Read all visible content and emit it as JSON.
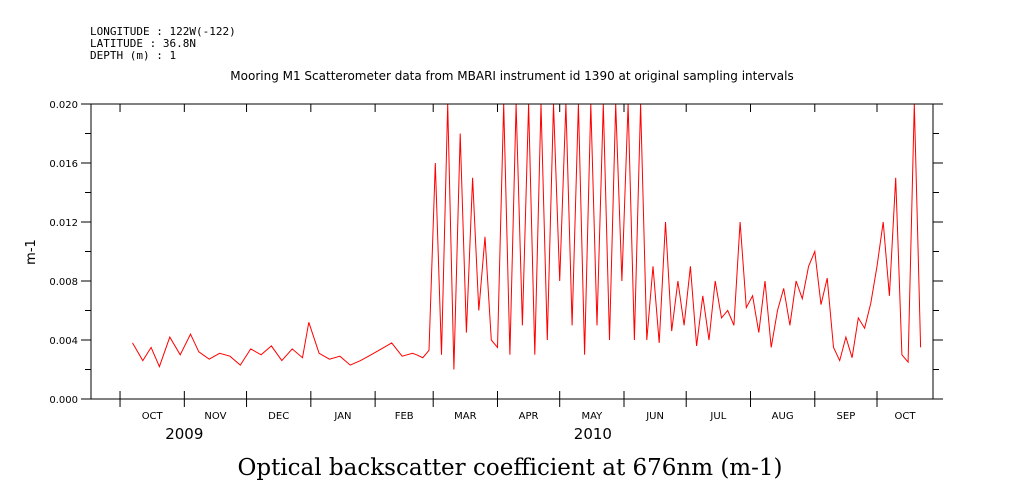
{
  "meta": {
    "longitude": "LONGITUDE : 122W(-122)",
    "latitude": "LATITUDE : 36.8N",
    "depth": "DEPTH (m) : 1"
  },
  "chart_data": {
    "type": "line",
    "title": "Mooring M1 Scatterometer data from MBARI instrument id 1390 at original sampling intervals",
    "xlabel": "Optical backscatter coefficient at 676nm (m-1)",
    "ylabel": "m-1",
    "ylim": [
      0,
      0.02
    ],
    "yticks": [
      "0.000",
      "0.004",
      "0.008",
      "0.012",
      "0.016",
      "0.020"
    ],
    "xlim": [
      "2009-09-17",
      "2010-10-28"
    ],
    "month_labels": [
      "OCT",
      "NOV",
      "DEC",
      "JAN",
      "FEB",
      "MAR",
      "APR",
      "MAY",
      "JUN",
      "JUL",
      "AUG",
      "SEP",
      "OCT"
    ],
    "years": [
      {
        "label": "2009",
        "date": "2009-11-01"
      },
      {
        "label": "2010",
        "date": "2010-05-17"
      }
    ],
    "line_color": "#ff0000",
    "grid": false,
    "series": [
      {
        "x": [
          "2009-10-07",
          "2009-10-12",
          "2009-10-16",
          "2009-10-20",
          "2009-10-25",
          "2009-10-30",
          "2009-11-04",
          "2009-11-08",
          "2009-11-13",
          "2009-11-18",
          "2009-11-23",
          "2009-11-28",
          "2009-12-03",
          "2009-12-08",
          "2009-12-13",
          "2009-12-18",
          "2009-12-23",
          "2009-12-28",
          "2009-12-31",
          "2010-01-05",
          "2010-01-10",
          "2010-01-15",
          "2010-01-20",
          "2010-01-25",
          "2010-01-30",
          "2010-02-04",
          "2010-02-09",
          "2010-02-14",
          "2010-02-19",
          "2010-02-21",
          "2010-02-24",
          "2010-02-27",
          "2010-03-02",
          "2010-03-05",
          "2010-03-08",
          "2010-03-11",
          "2010-03-14",
          "2010-03-17",
          "2010-03-20",
          "2010-03-23",
          "2010-03-26",
          "2010-03-29",
          "2010-04-01",
          "2010-04-04",
          "2010-04-07",
          "2010-04-10",
          "2010-04-13",
          "2010-04-16",
          "2010-04-19",
          "2010-04-22",
          "2010-04-25",
          "2010-04-28",
          "2010-05-01",
          "2010-05-04",
          "2010-05-07",
          "2010-05-10",
          "2010-05-13",
          "2010-05-16",
          "2010-05-19",
          "2010-05-22",
          "2010-05-25",
          "2010-05-28",
          "2010-05-31",
          "2010-06-03",
          "2010-06-06",
          "2010-06-09",
          "2010-06-12",
          "2010-06-15",
          "2010-06-18",
          "2010-06-21",
          "2010-06-24",
          "2010-06-27",
          "2010-06-30",
          "2010-07-03",
          "2010-07-06",
          "2010-07-09",
          "2010-07-12",
          "2010-07-15",
          "2010-07-18",
          "2010-07-21",
          "2010-07-24",
          "2010-07-27",
          "2010-07-30",
          "2010-08-02",
          "2010-08-05",
          "2010-08-08",
          "2010-08-11",
          "2010-08-14",
          "2010-08-17",
          "2010-08-20",
          "2010-08-23",
          "2010-08-26",
          "2010-08-29",
          "2010-09-01",
          "2010-09-04",
          "2010-09-07",
          "2010-09-10",
          "2010-09-13",
          "2010-09-16",
          "2010-09-19",
          "2010-09-22",
          "2010-09-25",
          "2010-09-28",
          "2010-10-01",
          "2010-10-04",
          "2010-10-07",
          "2010-10-10",
          "2010-10-13",
          "2010-10-16",
          "2010-10-19",
          "2010-10-22"
        ],
        "y": [
          0.0038,
          0.0026,
          0.0035,
          0.0022,
          0.0042,
          0.003,
          0.0044,
          0.0032,
          0.0027,
          0.0031,
          0.0029,
          0.0023,
          0.0034,
          0.003,
          0.0036,
          0.0026,
          0.0034,
          0.0028,
          0.0052,
          0.0031,
          0.0027,
          0.0029,
          0.0023,
          0.0026,
          0.003,
          0.0034,
          0.0038,
          0.0029,
          0.0031,
          0.003,
          0.0028,
          0.0033,
          0.016,
          0.003,
          0.02,
          0.002,
          0.018,
          0.0045,
          0.015,
          0.006,
          0.011,
          0.004,
          0.0035,
          0.02,
          0.003,
          0.02,
          0.005,
          0.02,
          0.003,
          0.02,
          0.004,
          0.02,
          0.008,
          0.02,
          0.005,
          0.02,
          0.003,
          0.02,
          0.005,
          0.02,
          0.004,
          0.02,
          0.008,
          0.02,
          0.004,
          0.02,
          0.004,
          0.009,
          0.0038,
          0.012,
          0.0046,
          0.008,
          0.005,
          0.009,
          0.0036,
          0.007,
          0.004,
          0.008,
          0.0055,
          0.006,
          0.005,
          0.012,
          0.0062,
          0.007,
          0.0045,
          0.008,
          0.0035,
          0.006,
          0.0075,
          0.005,
          0.008,
          0.0068,
          0.009,
          0.01,
          0.0064,
          0.0082,
          0.0035,
          0.0026,
          0.0042,
          0.0028,
          0.0055,
          0.0048,
          0.0065,
          0.009,
          0.012,
          0.007,
          0.015,
          0.003,
          0.0025,
          0.02,
          0.0035
        ]
      }
    ]
  }
}
